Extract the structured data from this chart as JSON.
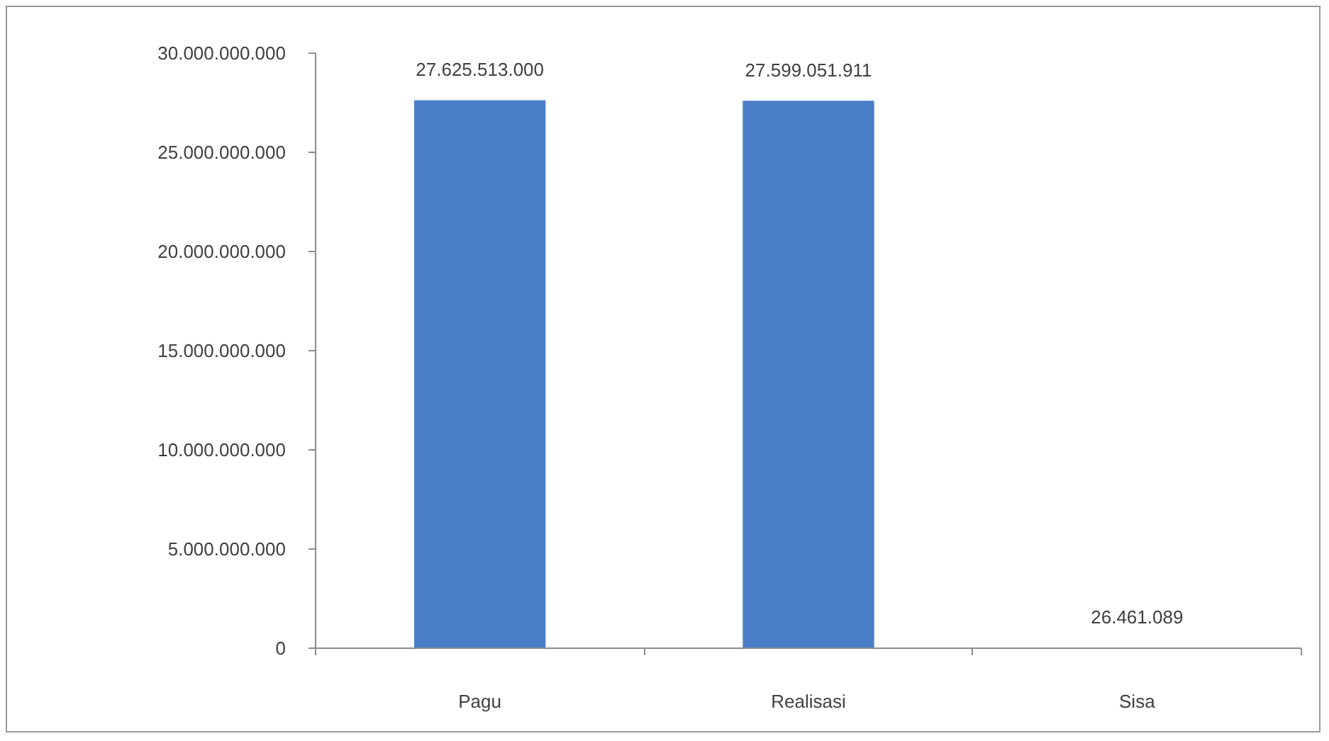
{
  "chart_data": {
    "type": "bar",
    "categories": [
      "Pagu",
      "Realisasi",
      "Sisa"
    ],
    "values": [
      27625513000,
      27599051911,
      26461089
    ],
    "color": "#4a7ec8",
    "value_labels": [
      "27.625.513.000",
      "27.599.051.911",
      "26.461.089"
    ],
    "ylim": [
      0,
      30000000000
    ],
    "yticks": [
      0,
      {
        "value": 5000000000,
        "label": "5.000.000.000"
      },
      {
        "value": 10000000000,
        "label": "10.000.000.000"
      },
      {
        "value": 15000000000,
        "label": "15.000.000.000"
      },
      {
        "value": 20000000000,
        "label": "20.000.000.000"
      },
      {
        "value": 25000000000,
        "label": "25.000.000.000"
      },
      {
        "value": 30000000000,
        "label": "30.000.000.000"
      }
    ]
  }
}
